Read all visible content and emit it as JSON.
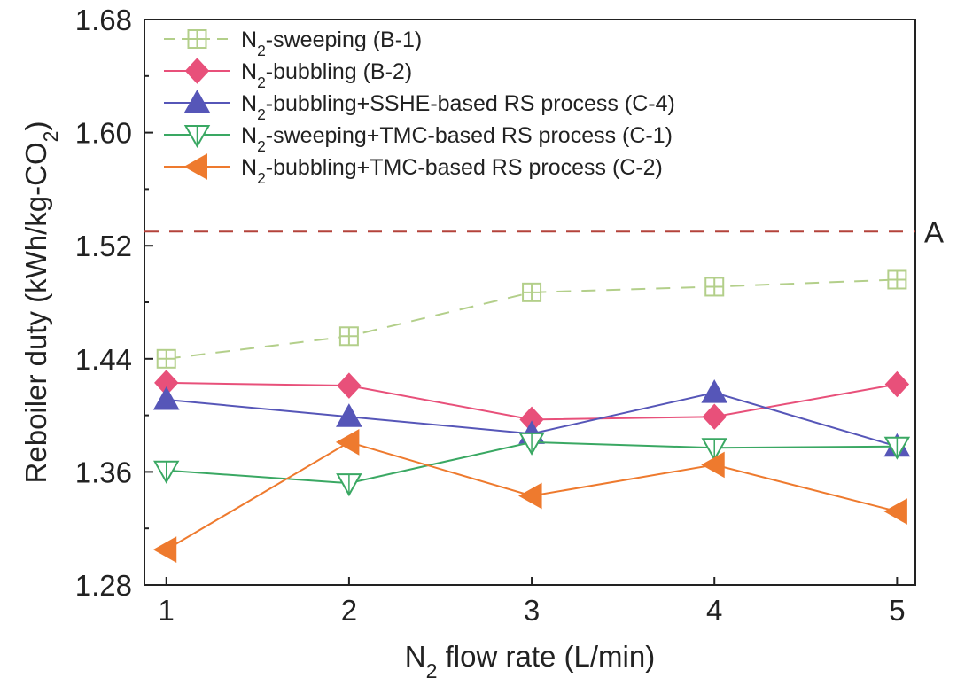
{
  "chart_data": {
    "type": "line",
    "x": [
      1,
      2,
      3,
      4,
      5
    ],
    "xlim": [
      0.88,
      5.1
    ],
    "ylim": [
      1.28,
      1.68
    ],
    "xticks": [
      "1",
      "2",
      "3",
      "4",
      "5"
    ],
    "yticks": [
      "1.28",
      "1.36",
      "1.44",
      "1.52",
      "1.60",
      "1.68"
    ],
    "xlabel": {
      "pre": "N",
      "sub": "2",
      "post": " flow rate (L/min)"
    },
    "ylabel": {
      "pre": "Reboiler duty (kWh/kg-CO",
      "sub": "2",
      "post": ")"
    },
    "grid": false,
    "legend_position": "top-left",
    "reference_line": {
      "y": 1.53,
      "label": "A",
      "color": "#b4433b",
      "style": "dashed"
    },
    "series": [
      {
        "id": "B-1",
        "legend": {
          "pre": "N",
          "sub": "2",
          "post": "-sweeping (B-1)"
        },
        "values": [
          1.44,
          1.456,
          1.487,
          1.491,
          1.496
        ],
        "color": "#b3cf8a",
        "marker": "square-plus",
        "line": "dashed"
      },
      {
        "id": "B-2",
        "legend": {
          "pre": "N",
          "sub": "2",
          "post": "-bubbling (B-2)"
        },
        "values": [
          1.423,
          1.421,
          1.397,
          1.399,
          1.422
        ],
        "color": "#e8507a",
        "marker": "diamond",
        "line": "solid"
      },
      {
        "id": "C-4",
        "legend": {
          "pre": "N",
          "sub": "2",
          "post": "-bubbling+SSHE-based RS process (C-4)"
        },
        "values": [
          1.411,
          1.399,
          1.387,
          1.416,
          1.378
        ],
        "color": "#5656b8",
        "marker": "triangle-up",
        "line": "solid"
      },
      {
        "id": "C-1",
        "legend": {
          "pre": "N",
          "sub": "2",
          "post": "-sweeping+TMC-based RS process (C-1)"
        },
        "values": [
          1.361,
          1.352,
          1.381,
          1.377,
          1.378
        ],
        "color": "#3aa863",
        "marker": "triangle-down-open",
        "line": "solid"
      },
      {
        "id": "C-2",
        "legend": {
          "pre": "N",
          "sub": "2",
          "post": "-bubbling+TMC-based RS process (C-2)"
        },
        "values": [
          1.305,
          1.381,
          1.343,
          1.365,
          1.332
        ],
        "color": "#ee7a2e",
        "marker": "triangle-left",
        "line": "solid"
      }
    ]
  }
}
